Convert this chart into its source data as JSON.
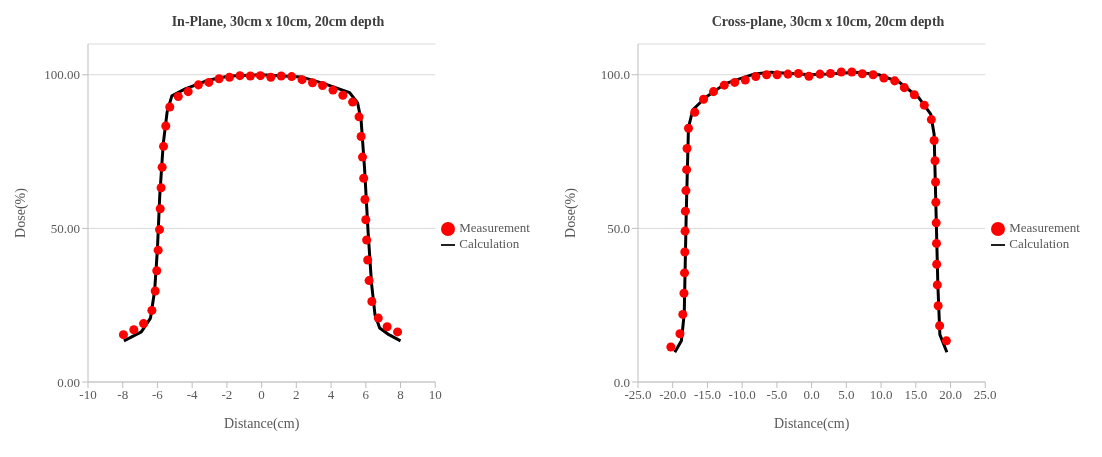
{
  "chart_data": [
    {
      "type": "line",
      "title": "In-Plane, 30cm x 10cm, 20cm depth",
      "xlabel": "Distance(cm)",
      "ylabel": "Dose(%)",
      "xlim": [
        -10,
        10
      ],
      "xticks": [
        -10,
        -8,
        -6,
        -4,
        -2,
        0,
        2,
        4,
        6,
        8,
        10
      ],
      "ylim": [
        0,
        110
      ],
      "yticks": [
        {
          "value": 0,
          "label": "0.00"
        },
        {
          "value": 50,
          "label": "50.00"
        },
        {
          "value": 100,
          "label": "100.00"
        }
      ],
      "grid": "y",
      "legend": "right",
      "series": [
        {
          "name": "Measurement",
          "type": "scatter",
          "marker": "circle",
          "color": "#ff0000",
          "x": [
            -7.96,
            -7.36,
            -6.8,
            -6.32,
            -6.13,
            -6.04,
            -5.96,
            -5.88,
            -5.84,
            -5.79,
            -5.73,
            -5.65,
            -5.52,
            -5.29,
            -4.8,
            -4.23,
            -3.64,
            -3.04,
            -2.45,
            -1.85,
            -1.25,
            -0.65,
            -0.07,
            0.53,
            1.13,
            1.73,
            2.33,
            2.93,
            3.51,
            4.11,
            4.68,
            5.24,
            5.61,
            5.73,
            5.81,
            5.88,
            5.95,
            6.0,
            6.05,
            6.11,
            6.19,
            6.35,
            6.72,
            7.23,
            7.83
          ],
          "values": [
            15.4,
            17,
            19,
            23.3,
            29.6,
            36.2,
            42.9,
            49.6,
            56.4,
            63.2,
            69.9,
            76.7,
            83.3,
            89.5,
            92.9,
            94.5,
            96.7,
            97.5,
            98.7,
            99.2,
            99.7,
            99.6,
            99.7,
            99.2,
            99.6,
            99.4,
            98.4,
            97.4,
            96.5,
            95.0,
            93.3,
            91.1,
            86.3,
            79.9,
            73.2,
            66.3,
            59.4,
            52.8,
            46.2,
            39.7,
            33.0,
            26.2,
            20.8,
            18.0,
            16.3
          ]
        },
        {
          "name": "Calculation",
          "type": "line",
          "marker": "none",
          "line_style": "solid",
          "color": "#000000",
          "x": [
            -7.93,
            -6.93,
            -6.4,
            -6.16,
            -6.0,
            -5.87,
            -5.67,
            -5.44,
            -5.17,
            -4.4,
            -3.07,
            -1.87,
            0,
            2.27,
            3.6,
            5.07,
            5.53,
            5.73,
            5.93,
            6.13,
            6.33,
            6.53,
            6.8,
            7.33,
            8.0
          ],
          "values": [
            13.4,
            16.3,
            20.8,
            29.8,
            43.4,
            60.3,
            77.3,
            88,
            93.1,
            95.4,
            98.2,
            99.6,
            100,
            99.3,
            97.1,
            94.2,
            90.8,
            85.2,
            69.4,
            49.1,
            32.1,
            21.9,
            17.6,
            15.4,
            13.4
          ]
        }
      ]
    },
    {
      "type": "line",
      "title": "Cross-plane, 30cm x 10cm, 20cm depth",
      "xlabel": "Distance(cm)",
      "ylabel": "Dose(%)",
      "xlim": [
        -25,
        25
      ],
      "xticks": [
        {
          "value": -25,
          "label": "-25.0"
        },
        {
          "value": -20,
          "label": "-20.0"
        },
        {
          "value": -15,
          "label": "-15.0"
        },
        {
          "value": -10,
          "label": "-10.0"
        },
        {
          "value": -5,
          "label": "-5.0"
        },
        {
          "value": 0,
          "label": "0.0"
        },
        {
          "value": 5,
          "label": "5.0"
        },
        {
          "value": 10,
          "label": "10.0"
        },
        {
          "value": 15,
          "label": "15.0"
        },
        {
          "value": 20,
          "label": "20.0"
        },
        {
          "value": 25,
          "label": "25.0"
        }
      ],
      "ylim": [
        0,
        110
      ],
      "yticks": [
        {
          "value": 0,
          "label": "0.0"
        },
        {
          "value": 50,
          "label": "50.0"
        },
        {
          "value": 100,
          "label": "100.0"
        }
      ],
      "grid": "y",
      "legend": "right",
      "series": [
        {
          "name": "Measurement",
          "type": "scatter",
          "marker": "circle",
          "color": "#ff0000",
          "x": [
            -20.27,
            -18.96,
            -18.55,
            -18.38,
            -18.3,
            -18.26,
            -18.22,
            -18.18,
            -18.1,
            -18.0,
            -17.94,
            -17.73,
            -16.83,
            -15.56,
            -14.13,
            -12.58,
            -11.07,
            -9.55,
            -8.04,
            -6.48,
            -4.97,
            -3.41,
            -1.9,
            -0.39,
            1.2,
            2.72,
            4.27,
            5.79,
            7.3,
            8.86,
            10.4,
            11.96,
            13.35,
            14.79,
            16.22,
            17.24,
            17.64,
            17.77,
            17.85,
            17.89,
            17.94,
            17.98,
            18.01,
            18.1,
            18.22,
            18.43,
            19.41
          ],
          "values": [
            11.4,
            15.7,
            22.0,
            28.9,
            35.5,
            42.3,
            49.1,
            55.6,
            62.3,
            69.1,
            76.0,
            82.6,
            87.8,
            92.0,
            94.5,
            96.6,
            97.5,
            98.3,
            99.4,
            100.0,
            100.0,
            100.2,
            100.4,
            99.5,
            100.2,
            100.4,
            100.9,
            100.9,
            100.3,
            100.0,
            98.9,
            98.0,
            95.8,
            93.5,
            90.1,
            85.4,
            78.6,
            72.0,
            65.1,
            58.5,
            51.8,
            45.1,
            38.3,
            31.6,
            24.8,
            18.3,
            13.4
          ]
        },
        {
          "name": "Calculation",
          "type": "line",
          "marker": "none",
          "line_style": "solid",
          "color": "#000000",
          "x": [
            -19.7,
            -18.75,
            -18.34,
            -18.06,
            -17.73,
            -17.1,
            -15.28,
            -12.42,
            -8.32,
            -5.87,
            -0.15,
            2.3,
            6.4,
            9.67,
            12.54,
            15.4,
            17.15,
            17.64,
            18.18,
            18.47,
            19.48
          ],
          "values": [
            9.7,
            13.4,
            22.3,
            54.3,
            82.9,
            88.6,
            92.6,
            97.1,
            100.2,
            100.8,
            100,
            100.2,
            100.8,
            100,
            97.7,
            92.6,
            87.2,
            80.6,
            31.4,
            15.4,
            9.7
          ]
        }
      ]
    }
  ]
}
